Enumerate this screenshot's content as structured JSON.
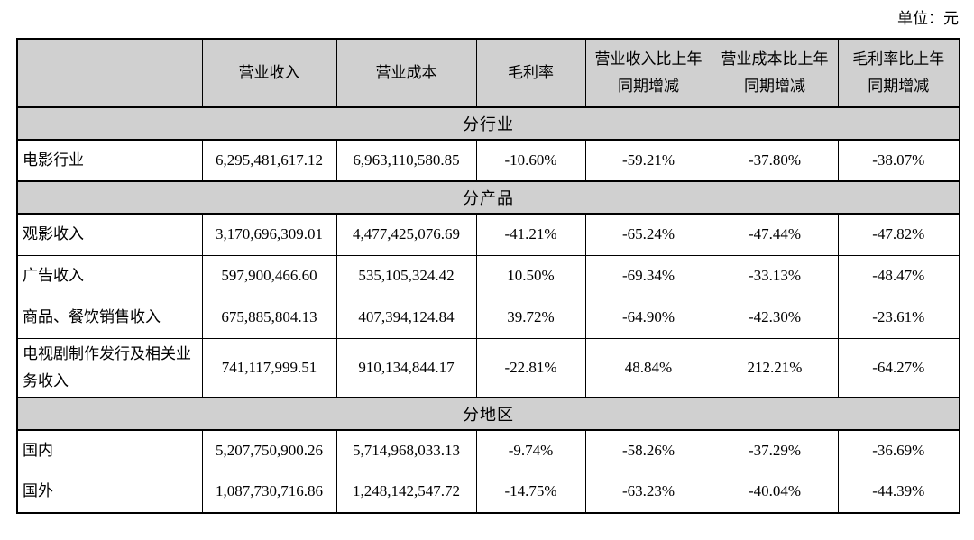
{
  "unit_label": "单位：元",
  "table": {
    "columns": [
      "",
      "营业收入",
      "营业成本",
      "毛利率",
      "营业收入比上年同期增减",
      "营业成本比上年同期增减",
      "毛利率比上年同期增减"
    ],
    "sections": [
      {
        "header": "分行业",
        "rows": [
          {
            "label": "电影行业",
            "values": [
              "6,295,481,617.12",
              "6,963,110,580.85",
              "-10.60%",
              "-59.21%",
              "-37.80%",
              "-38.07%"
            ]
          }
        ]
      },
      {
        "header": "分产品",
        "rows": [
          {
            "label": "观影收入",
            "values": [
              "3,170,696,309.01",
              "4,477,425,076.69",
              "-41.21%",
              "-65.24%",
              "-47.44%",
              "-47.82%"
            ]
          },
          {
            "label": "广告收入",
            "values": [
              "597,900,466.60",
              "535,105,324.42",
              "10.50%",
              "-69.34%",
              "-33.13%",
              "-48.47%"
            ]
          },
          {
            "label": "商品、餐饮销售收入",
            "values": [
              "675,885,804.13",
              "407,394,124.84",
              "39.72%",
              "-64.90%",
              "-42.30%",
              "-23.61%"
            ]
          },
          {
            "label": "电视剧制作发行及相关业务收入",
            "values": [
              "741,117,999.51",
              "910,134,844.17",
              "-22.81%",
              "48.84%",
              "212.21%",
              "-64.27%"
            ]
          }
        ]
      },
      {
        "header": "分地区",
        "rows": [
          {
            "label": "国内",
            "values": [
              "5,207,750,900.26",
              "5,714,968,033.13",
              "-9.74%",
              "-58.26%",
              "-37.29%",
              "-36.69%"
            ]
          },
          {
            "label": "国外",
            "values": [
              "1,087,730,716.86",
              "1,248,142,547.72",
              "-14.75%",
              "-63.23%",
              "-40.04%",
              "-44.39%"
            ]
          }
        ]
      }
    ]
  },
  "colors": {
    "header_bg": "#d0d0d0",
    "section_bg": "#d0d0d0",
    "border": "#000000",
    "page_bg": "#ffffff"
  }
}
